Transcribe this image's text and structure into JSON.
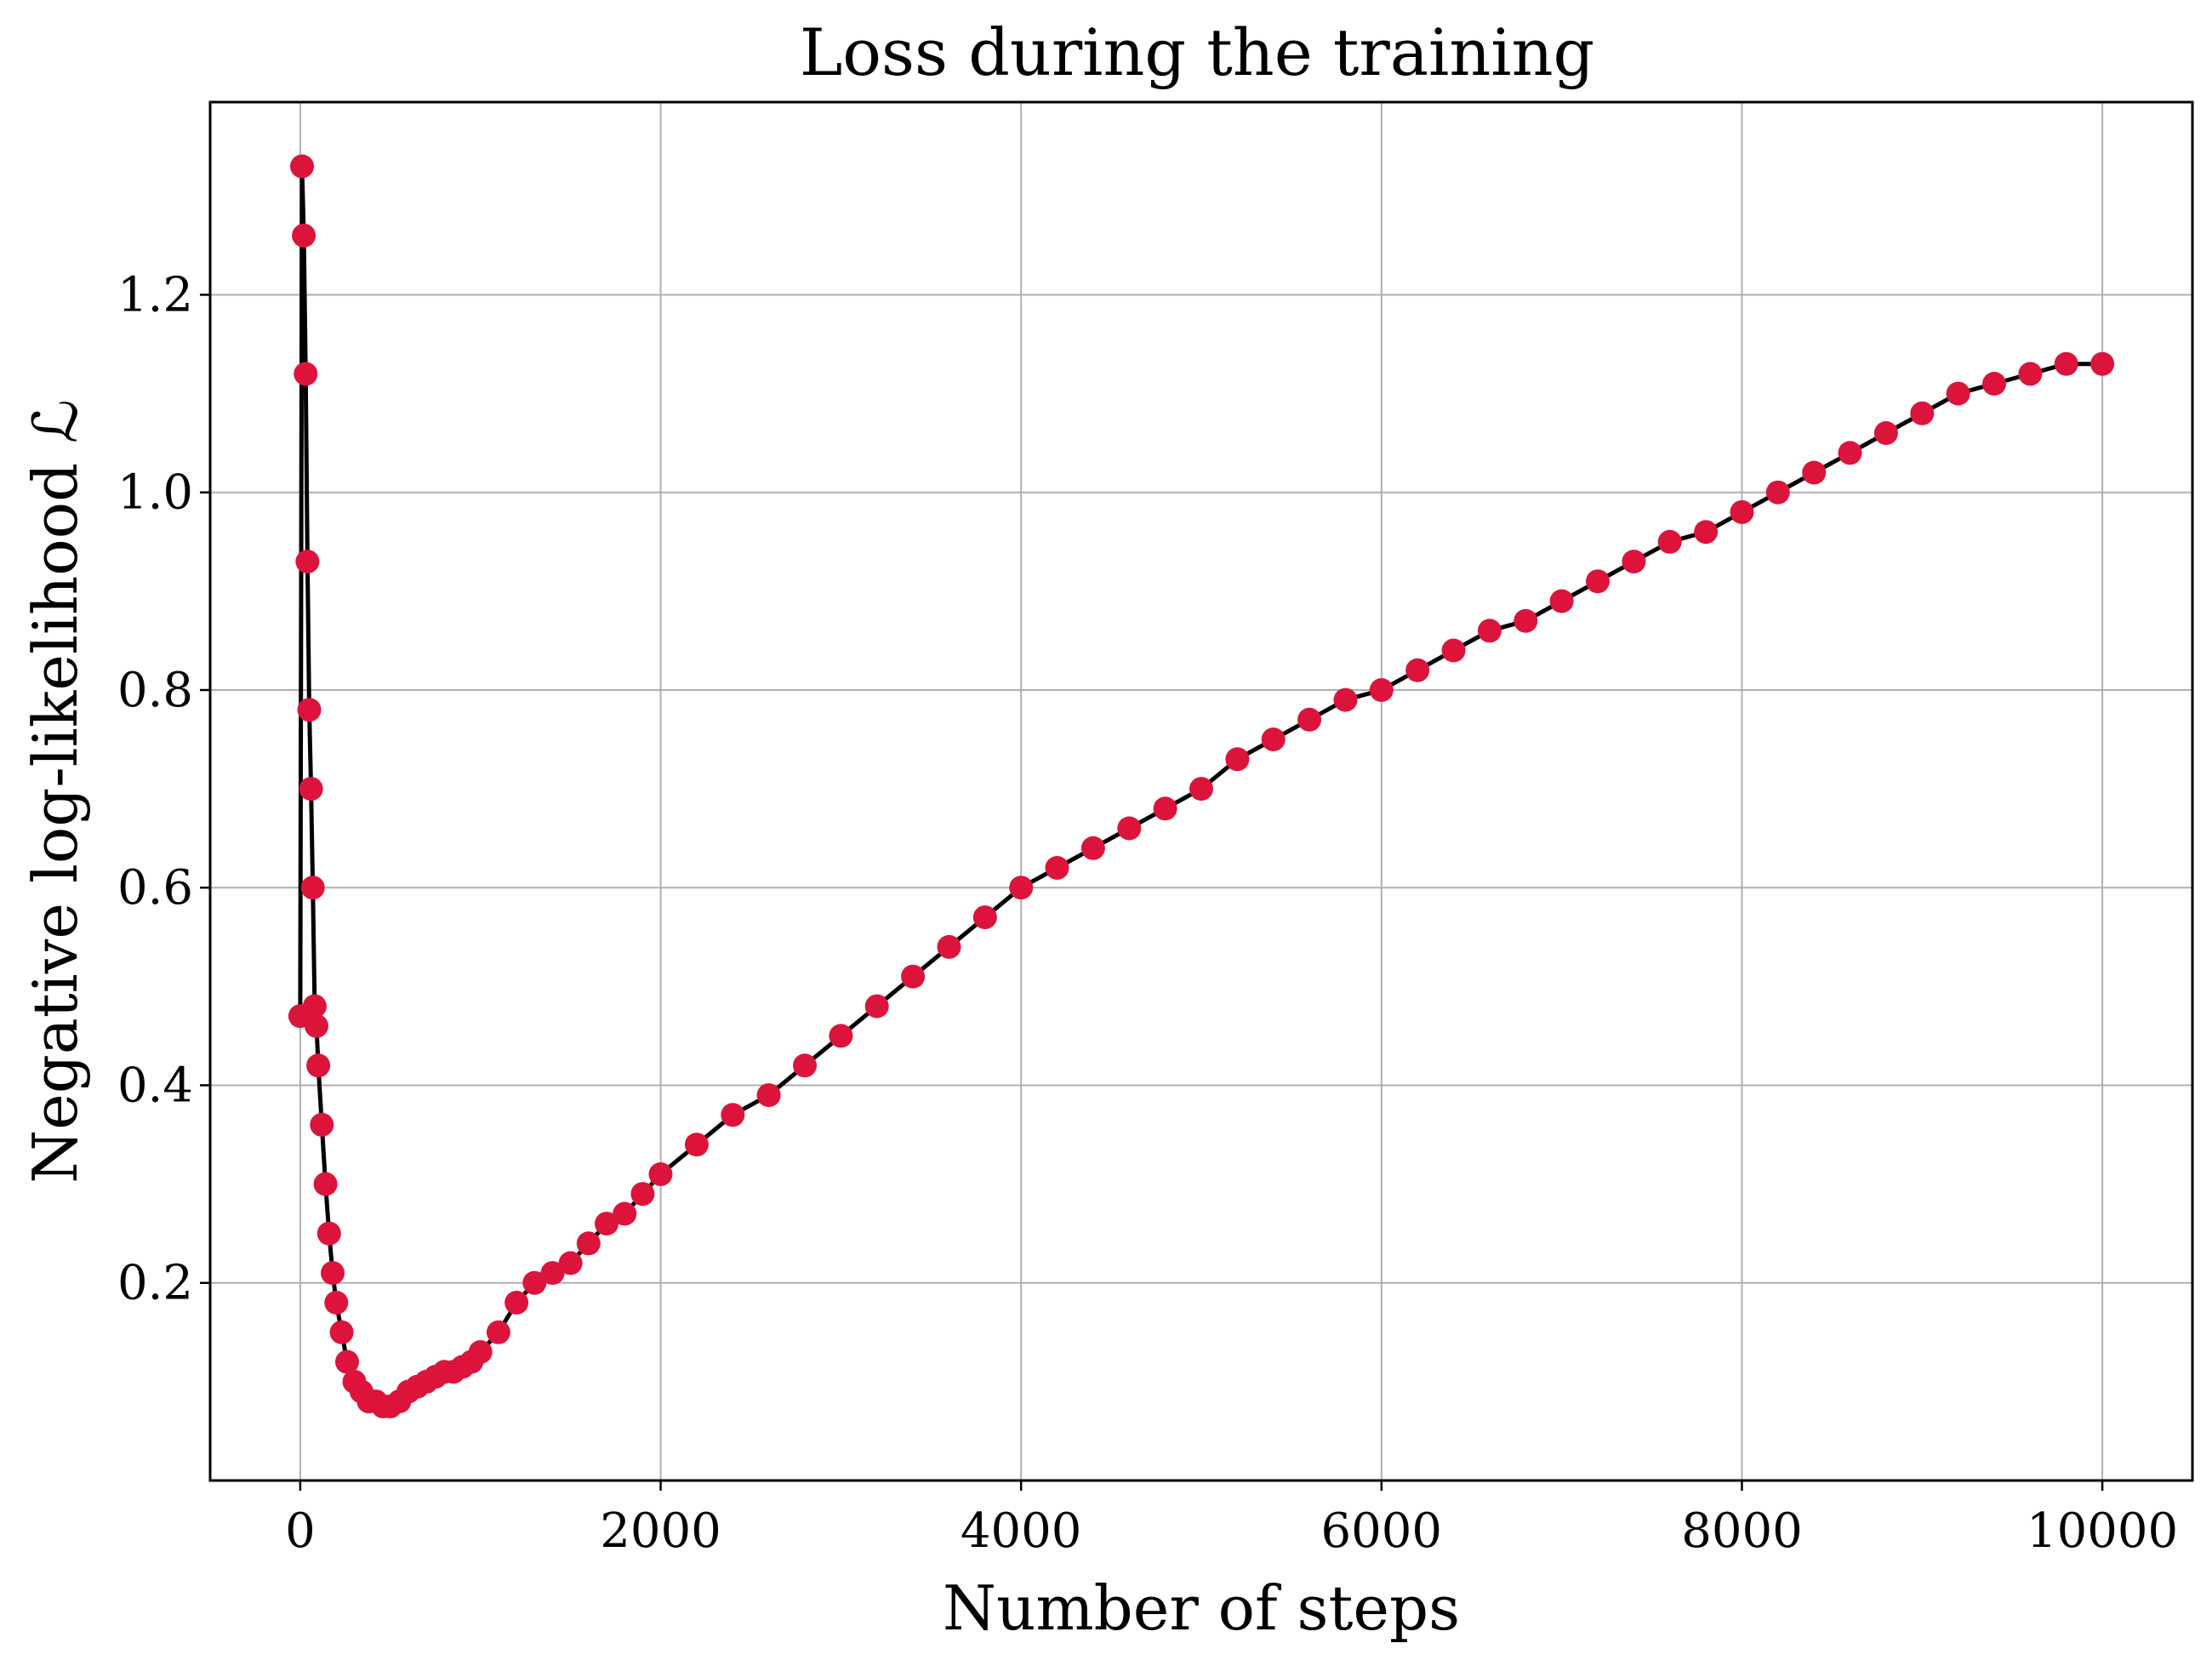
{
  "chart_data": {
    "type": "scatter",
    "title": "Loss during the training",
    "xlabel": "Number of steps",
    "ylabel": "Negative log-likelihood ℒ",
    "xlim": [
      -500,
      10500
    ],
    "ylim": [
      0.0,
      1.395
    ],
    "xticks": [
      0,
      2000,
      4000,
      6000,
      8000,
      10000
    ],
    "xtick_labels": [
      "0",
      "2000",
      "4000",
      "6000",
      "8000",
      "10000"
    ],
    "yticks": [
      0.2,
      0.4,
      0.6,
      0.8,
      1.0,
      1.2
    ],
    "ytick_labels": [
      "0.2",
      "0.4",
      "0.6",
      "0.8",
      "1.0",
      "1.2"
    ],
    "grid": true,
    "colors": {
      "marker": "#dc143c",
      "line": "#000000"
    },
    "series": [
      {
        "x": [
          0,
          10,
          20,
          30,
          40,
          50,
          60,
          70,
          80,
          90,
          100,
          120,
          140,
          160,
          180,
          200,
          230,
          260,
          300,
          340,
          380,
          420,
          460,
          500,
          550,
          600,
          650,
          700,
          750,
          800,
          850,
          900,
          950,
          1000,
          1100,
          1200,
          1300,
          1400,
          1500,
          1600,
          1700,
          1800,
          1900,
          2000,
          2200,
          2400,
          2600,
          2800,
          3000,
          3200,
          3400,
          3600,
          3800,
          4000,
          4200,
          4400,
          4600,
          4800,
          5000,
          5200,
          5400,
          5600,
          5800,
          6000,
          6200,
          6400,
          6600,
          6800,
          7000,
          7200,
          7400,
          7600,
          7800,
          8000,
          8200,
          8400,
          8600,
          8800,
          9000,
          9200,
          9400,
          9600,
          9800,
          10000
        ],
        "y": [
          0.47,
          1.33,
          1.26,
          1.12,
          0.93,
          0.78,
          0.7,
          0.6,
          0.48,
          0.46,
          0.42,
          0.36,
          0.3,
          0.25,
          0.21,
          0.18,
          0.15,
          0.12,
          0.1,
          0.09,
          0.08,
          0.08,
          0.075,
          0.075,
          0.08,
          0.09,
          0.095,
          0.1,
          0.105,
          0.11,
          0.11,
          0.115,
          0.12,
          0.13,
          0.15,
          0.18,
          0.2,
          0.21,
          0.22,
          0.24,
          0.26,
          0.27,
          0.29,
          0.31,
          0.34,
          0.37,
          0.39,
          0.42,
          0.45,
          0.48,
          0.51,
          0.54,
          0.57,
          0.6,
          0.62,
          0.64,
          0.66,
          0.68,
          0.7,
          0.73,
          0.75,
          0.77,
          0.79,
          0.8,
          0.82,
          0.84,
          0.86,
          0.87,
          0.89,
          0.91,
          0.93,
          0.95,
          0.96,
          0.98,
          1.0,
          1.02,
          1.04,
          1.06,
          1.08,
          1.1,
          1.11,
          1.12,
          1.13,
          1.13
        ]
      }
    ]
  }
}
